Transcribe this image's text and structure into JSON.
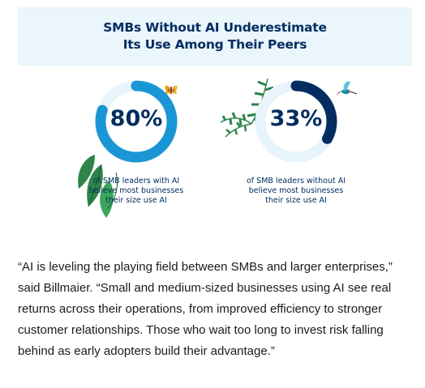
{
  "chart_data": {
    "type": "pie",
    "title_lines": [
      "SMBs Without AI Underestimate",
      "Its Use Among Their Peers"
    ],
    "charts": [
      {
        "value": 80,
        "label": "80%",
        "caption_lines": [
          "of SMB leaders with AI",
          "believe most businesses",
          "their size use AI"
        ],
        "color": "#1b96d4"
      },
      {
        "value": 33,
        "label": "33%",
        "caption_lines": [
          "of SMB leaders without AI",
          "believe most businesses",
          "their size use AI"
        ],
        "color": "#032d60"
      }
    ]
  },
  "colors": {
    "header_bg": "#eaf5fc",
    "ring_track": "#e8f4fc",
    "title_text": "#032d60"
  },
  "decorations": {
    "left": [
      "butterfly-icon",
      "green-leaves"
    ],
    "right": [
      "hummingbird-icon",
      "fern-leaves"
    ]
  },
  "quote": "“AI is leveling the playing field between SMBs and larger enterprises,” said Billmaier. “Small and medium-sized businesses using AI see real returns across their operations, from improved efficiency to stronger customer relationships. Those who wait too long to invest risk falling behind as early adopters build their advantage.”"
}
